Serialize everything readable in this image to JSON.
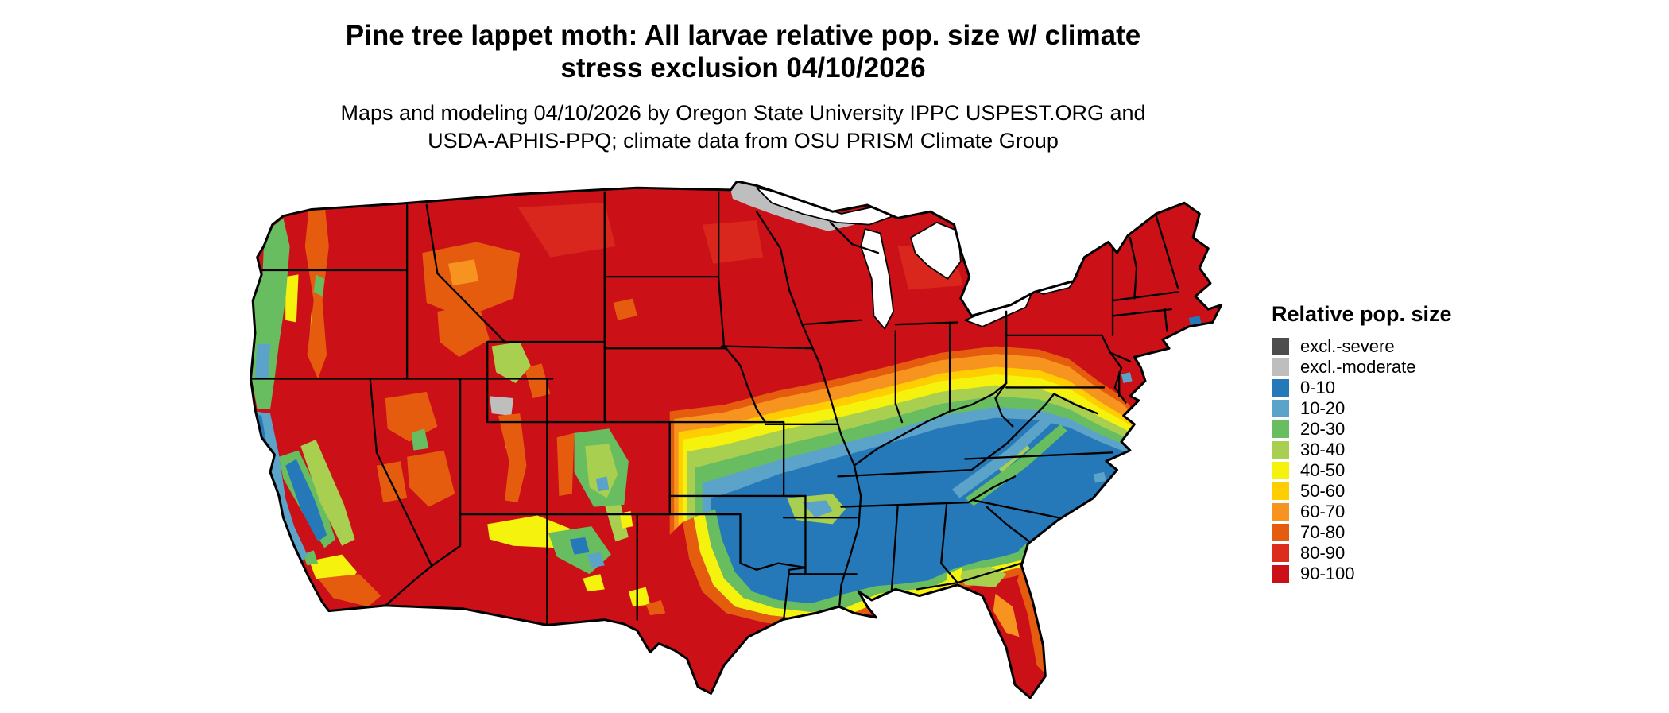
{
  "title": {
    "line1": "Pine tree lappet moth: All larvae relative pop. size w/ climate",
    "line2": "stress exclusion 04/10/2026"
  },
  "subtitle": {
    "line1": "Maps and modeling 04/10/2026 by Oregon State University IPPC USPEST.ORG and",
    "line2": "USDA-APHIS-PPQ; climate data from OSU PRISM Climate Group"
  },
  "legend": {
    "title": "Relative pop. size",
    "items": [
      {
        "label": "excl.-severe",
        "color": "#4D4D4D"
      },
      {
        "label": "excl.-moderate",
        "color": "#BEBEBE"
      },
      {
        "label": "0-10",
        "color": "#2679B8"
      },
      {
        "label": "10-20",
        "color": "#5BA3C9"
      },
      {
        "label": "20-30",
        "color": "#68BD60"
      },
      {
        "label": "30-40",
        "color": "#A8CF4F"
      },
      {
        "label": "40-50",
        "color": "#F5F20E"
      },
      {
        "label": "50-60",
        "color": "#FFCE00"
      },
      {
        "label": "60-70",
        "color": "#F79420"
      },
      {
        "label": "70-80",
        "color": "#E65C0F"
      },
      {
        "label": "80-90",
        "color": "#DC2C1E"
      },
      {
        "label": "90-100",
        "color": "#CB1017"
      }
    ]
  },
  "map": {
    "region": "Continental United States",
    "water_color": "#FFFFFF",
    "border_color": "#000000"
  }
}
